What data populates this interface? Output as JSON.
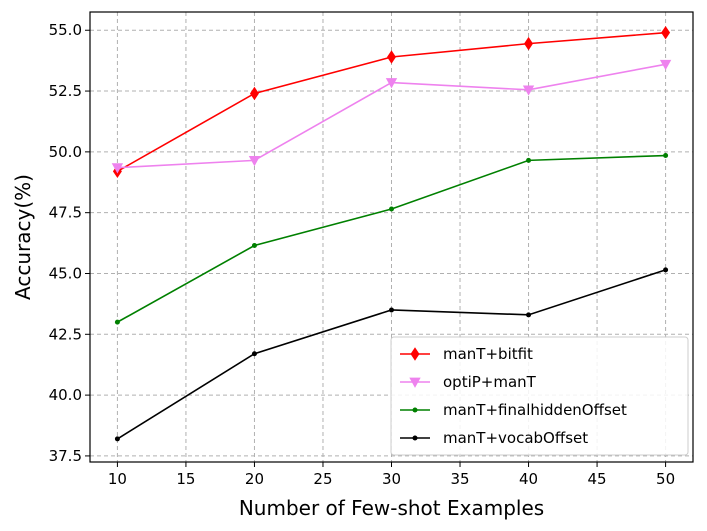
{
  "chart_data": {
    "type": "line",
    "title": "",
    "xlabel": "Number of Few-shot Examples",
    "ylabel": "Accuracy(%)",
    "xlim": [
      8.0,
      52.0
    ],
    "ylim": [
      37.25,
      55.75
    ],
    "x_ticks": [
      10,
      15,
      20,
      25,
      30,
      35,
      40,
      45,
      50
    ],
    "y_ticks": [
      "37.5",
      "40.0",
      "42.5",
      "45.0",
      "47.5",
      "50.0",
      "52.5",
      "55.0"
    ],
    "x": [
      10,
      20,
      30,
      40,
      50
    ],
    "grid": true,
    "legend_position": "bottom-right",
    "series": [
      {
        "name": "manT+bitfit",
        "color": "#ff0000",
        "marker": "diamond",
        "values": [
          49.2,
          52.4,
          53.9,
          54.45,
          54.9
        ]
      },
      {
        "name": "optiP+manT",
        "color": "#ee82ee",
        "marker": "triangle-down",
        "values": [
          49.35,
          49.65,
          52.85,
          52.55,
          53.6
        ]
      },
      {
        "name": "manT+finalhiddenOffset",
        "color": "#008000",
        "marker": "point",
        "values": [
          43.0,
          46.15,
          47.65,
          49.65,
          49.85
        ]
      },
      {
        "name": "manT+vocabOffset",
        "color": "#000000",
        "marker": "point",
        "values": [
          38.2,
          41.7,
          43.5,
          43.3,
          45.15
        ]
      }
    ]
  }
}
